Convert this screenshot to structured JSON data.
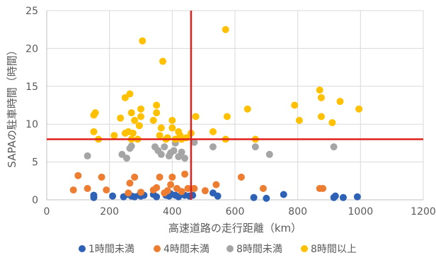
{
  "chart_data": {
    "type": "scatter",
    "title": "",
    "xlabel": "高速道路の走行距離（km）",
    "ylabel": "SAPAの駐車時間（時間）",
    "xlim": [
      0,
      1200
    ],
    "ylim": [
      0,
      25
    ],
    "x_ticks": [
      0,
      200,
      400,
      600,
      800,
      1000,
      1200
    ],
    "y_ticks": [
      0,
      5,
      10,
      15,
      20,
      25
    ],
    "x_tick_labels": [
      "0",
      "200",
      "400",
      "600",
      "800",
      "1000",
      "1200"
    ],
    "y_tick_labels": [
      "0",
      "5",
      "10",
      "15",
      "20",
      "25"
    ],
    "grid": "horizontal",
    "legend_position": "bottom",
    "reference_lines": [
      {
        "orientation": "vertical",
        "value": 460,
        "color": "#E0201B"
      },
      {
        "orientation": "horizontal",
        "value": 8,
        "color": "#E0201B"
      }
    ],
    "series": [
      {
        "name": "1時間未満",
        "color": "#2E62B6",
        "points": [
          [
            150,
            0.6
          ],
          [
            150,
            0.3
          ],
          [
            210,
            0.5
          ],
          [
            245,
            0.4
          ],
          [
            260,
            0.7
          ],
          [
            270,
            0.5
          ],
          [
            280,
            0.4
          ],
          [
            295,
            0.6
          ],
          [
            300,
            0.5
          ],
          [
            310,
            0.6
          ],
          [
            340,
            0.7
          ],
          [
            350,
            0.4
          ],
          [
            380,
            0.6
          ],
          [
            390,
            0.5
          ],
          [
            395,
            0.8
          ],
          [
            410,
            0.6
          ],
          [
            420,
            0.4
          ],
          [
            430,
            0.7
          ],
          [
            440,
            0.6
          ],
          [
            455,
            0.5
          ],
          [
            465,
            0.6
          ],
          [
            530,
            0.9
          ],
          [
            545,
            0.5
          ],
          [
            660,
            0.3
          ],
          [
            700,
            0.2
          ],
          [
            755,
            0.7
          ],
          [
            915,
            0.3
          ],
          [
            920,
            0.5
          ],
          [
            945,
            0.3
          ],
          [
            990,
            0.4
          ]
        ]
      },
      {
        "name": "4時間未満",
        "color": "#ED7D31",
        "points": [
          [
            85,
            1.3
          ],
          [
            100,
            3.2
          ],
          [
            130,
            1.5
          ],
          [
            175,
            3.0
          ],
          [
            190,
            1.3
          ],
          [
            260,
            0.9
          ],
          [
            265,
            2.2
          ],
          [
            280,
            3.0
          ],
          [
            300,
            1.0
          ],
          [
            340,
            1.3
          ],
          [
            350,
            1.6
          ],
          [
            360,
            3.0
          ],
          [
            375,
            0.9
          ],
          [
            385,
            1.2
          ],
          [
            395,
            2.0
          ],
          [
            400,
            3.0
          ],
          [
            415,
            1.5
          ],
          [
            430,
            1.1
          ],
          [
            440,
            3.4
          ],
          [
            450,
            1.5
          ],
          [
            470,
            1.5
          ],
          [
            505,
            1.2
          ],
          [
            540,
            2.0
          ],
          [
            620,
            3.0
          ],
          [
            690,
            1.5
          ],
          [
            870,
            1.5
          ],
          [
            880,
            1.5
          ]
        ]
      },
      {
        "name": "8時間未満",
        "color": "#A5A5A5",
        "points": [
          [
            130,
            5.8
          ],
          [
            240,
            6.0
          ],
          [
            255,
            5.5
          ],
          [
            265,
            6.8
          ],
          [
            270,
            7.1
          ],
          [
            345,
            7.0
          ],
          [
            355,
            6.5
          ],
          [
            365,
            6.0
          ],
          [
            375,
            7.0
          ],
          [
            390,
            5.8
          ],
          [
            395,
            6.2
          ],
          [
            405,
            6.5
          ],
          [
            410,
            7.5
          ],
          [
            420,
            5.7
          ],
          [
            430,
            6.3
          ],
          [
            440,
            5.5
          ],
          [
            470,
            7.6
          ],
          [
            530,
            7.0
          ],
          [
            665,
            7.0
          ],
          [
            710,
            6.0
          ],
          [
            915,
            7.0
          ]
        ]
      },
      {
        "name": "8時間以上",
        "color": "#FFC000",
        "points": [
          [
            150,
            9.0
          ],
          [
            150,
            11.2
          ],
          [
            155,
            11.5
          ],
          [
            165,
            8.0
          ],
          [
            215,
            8.5
          ],
          [
            235,
            10.8
          ],
          [
            250,
            8.8
          ],
          [
            250,
            13.5
          ],
          [
            260,
            9.0
          ],
          [
            265,
            14.0
          ],
          [
            270,
            8.0
          ],
          [
            270,
            11.5
          ],
          [
            275,
            8.8
          ],
          [
            280,
            10.5
          ],
          [
            290,
            8.0
          ],
          [
            295,
            9.8
          ],
          [
            300,
            11.0
          ],
          [
            300,
            12.0
          ],
          [
            305,
            21.0
          ],
          [
            340,
            10.5
          ],
          [
            350,
            11.5
          ],
          [
            350,
            12.5
          ],
          [
            360,
            8.5
          ],
          [
            365,
            9.5
          ],
          [
            370,
            18.3
          ],
          [
            380,
            8.0
          ],
          [
            385,
            8.2
          ],
          [
            400,
            9.5
          ],
          [
            400,
            10.5
          ],
          [
            410,
            8.0
          ],
          [
            420,
            9.0
          ],
          [
            425,
            8.5
          ],
          [
            430,
            8.0
          ],
          [
            445,
            8.2
          ],
          [
            460,
            8.8
          ],
          [
            475,
            11.0
          ],
          [
            530,
            9.0
          ],
          [
            570,
            22.5
          ],
          [
            575,
            11.0
          ],
          [
            570,
            8.0
          ],
          [
            640,
            12.0
          ],
          [
            665,
            8.0
          ],
          [
            790,
            12.5
          ],
          [
            805,
            10.5
          ],
          [
            870,
            14.5
          ],
          [
            875,
            13.5
          ],
          [
            875,
            11.0
          ],
          [
            910,
            10.2
          ],
          [
            935,
            13.0
          ],
          [
            995,
            12.0
          ]
        ]
      }
    ]
  }
}
